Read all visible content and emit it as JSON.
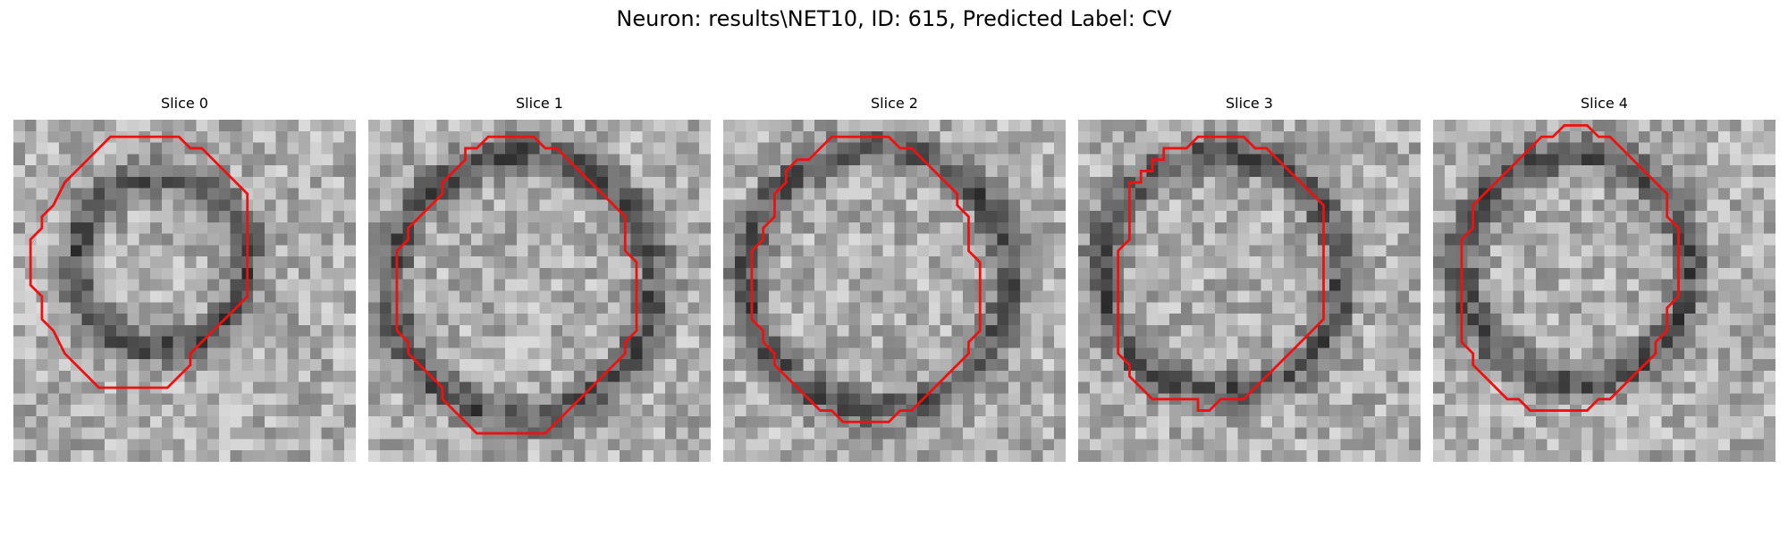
{
  "figure": {
    "title": "Neuron: results\\NET10, ID: 615, Predicted Label: CV",
    "contour_color": "#ee1111"
  },
  "panels": [
    {
      "title": "Slice 0",
      "contour": [
        [
          5.5,
          4.5
        ],
        [
          6.5,
          3.5
        ],
        [
          6.9,
          3.1
        ],
        [
          7.5,
          2.5
        ],
        [
          8.5,
          1.5
        ],
        [
          9.5,
          1.5
        ],
        [
          10.5,
          1.5
        ],
        [
          11.5,
          1.5
        ],
        [
          13.5,
          1.5
        ],
        [
          14.5,
          1.5
        ],
        [
          15.5,
          2.5
        ],
        [
          16.5,
          2.5
        ],
        [
          17.5,
          3.5
        ],
        [
          18.5,
          4.5
        ],
        [
          19.5,
          5.5
        ],
        [
          20.5,
          6.5
        ],
        [
          20.5,
          10.5
        ],
        [
          20.5,
          15.5
        ],
        [
          19.5,
          16.5
        ],
        [
          18.5,
          17.5
        ],
        [
          17.5,
          18.5
        ],
        [
          15.5,
          20.5
        ],
        [
          15.5,
          21.5
        ],
        [
          14.5,
          22.5
        ],
        [
          13.5,
          23.5
        ],
        [
          12.5,
          23.5
        ],
        [
          10.5,
          23.5
        ],
        [
          9.5,
          23.5
        ],
        [
          8.5,
          23.5
        ],
        [
          7.5,
          23.5
        ],
        [
          6.5,
          22.5
        ],
        [
          5.5,
          21.5
        ],
        [
          4.5,
          20.5
        ],
        [
          3.5,
          18.5
        ],
        [
          2.5,
          17.5
        ],
        [
          2.5,
          15.5
        ],
        [
          1.5,
          14.5
        ],
        [
          1.5,
          12.5
        ],
        [
          1.5,
          10.5
        ],
        [
          2.5,
          9.5
        ],
        [
          2.5,
          8.5
        ],
        [
          3.5,
          7.5
        ],
        [
          4.5,
          5.5
        ]
      ]
    },
    {
      "title": "Slice 1",
      "contour": [
        [
          8.5,
          2.5
        ],
        [
          9.5,
          2.5
        ],
        [
          10.5,
          1.5
        ],
        [
          11.5,
          1.5
        ],
        [
          13.5,
          1.5
        ],
        [
          14.5,
          1.5
        ],
        [
          15.5,
          2.5
        ],
        [
          16.5,
          2.5
        ],
        [
          17.5,
          3.5
        ],
        [
          18.5,
          4.5
        ],
        [
          19.5,
          5.5
        ],
        [
          20.5,
          6.5
        ],
        [
          21.5,
          7.5
        ],
        [
          22.5,
          8.5
        ],
        [
          22.5,
          9.5
        ],
        [
          22.5,
          11.5
        ],
        [
          23.5,
          12.5
        ],
        [
          23.5,
          14.5
        ],
        [
          23.5,
          16.5
        ],
        [
          23.5,
          18.5
        ],
        [
          22.5,
          19.5
        ],
        [
          22.5,
          20.5
        ],
        [
          21.5,
          21.5
        ],
        [
          20.5,
          22.5
        ],
        [
          19.5,
          23.5
        ],
        [
          18.5,
          24.5
        ],
        [
          17.5,
          25.5
        ],
        [
          16.5,
          26.5
        ],
        [
          15.5,
          27.5
        ],
        [
          14.5,
          27.5
        ],
        [
          12.5,
          27.5
        ],
        [
          11.5,
          27.5
        ],
        [
          10.5,
          27.5
        ],
        [
          9.5,
          27.5
        ],
        [
          8.5,
          26.5
        ],
        [
          7.5,
          25.5
        ],
        [
          6.5,
          24.5
        ],
        [
          6.5,
          23.5
        ],
        [
          5.5,
          22.5
        ],
        [
          4.5,
          21.5
        ],
        [
          3.5,
          20.5
        ],
        [
          3.5,
          19.5
        ],
        [
          2.5,
          18.5
        ],
        [
          2.5,
          17.5
        ],
        [
          2.5,
          15.5
        ],
        [
          2.5,
          13.5
        ],
        [
          2.5,
          11.5
        ],
        [
          3.5,
          10.5
        ],
        [
          3.5,
          9.5
        ],
        [
          4.5,
          8.5
        ],
        [
          5.5,
          7.5
        ],
        [
          6.5,
          6.5
        ],
        [
          6.5,
          5.5
        ],
        [
          7.5,
          4.5
        ],
        [
          8.5,
          3.5
        ]
      ]
    },
    {
      "title": "Slice 2",
      "contour": [
        [
          8.5,
          2.5
        ],
        [
          9.5,
          1.5
        ],
        [
          10.5,
          1.5
        ],
        [
          11.5,
          1.5
        ],
        [
          13.5,
          1.5
        ],
        [
          14.5,
          1.5
        ],
        [
          15.5,
          2.5
        ],
        [
          16.5,
          2.5
        ],
        [
          17.5,
          3.5
        ],
        [
          18.5,
          4.5
        ],
        [
          19.5,
          5.5
        ],
        [
          20.5,
          6.5
        ],
        [
          20.5,
          7.5
        ],
        [
          21.5,
          8.5
        ],
        [
          21.5,
          9.5
        ],
        [
          21.5,
          11.5
        ],
        [
          22.5,
          12.5
        ],
        [
          22.5,
          14.5
        ],
        [
          22.5,
          16.5
        ],
        [
          22.5,
          18.5
        ],
        [
          21.5,
          19.5
        ],
        [
          21.5,
          20.5
        ],
        [
          20.5,
          21.5
        ],
        [
          19.5,
          22.5
        ],
        [
          18.5,
          23.5
        ],
        [
          17.5,
          24.5
        ],
        [
          16.5,
          25.5
        ],
        [
          15.5,
          25.5
        ],
        [
          14.5,
          26.5
        ],
        [
          12.5,
          26.5
        ],
        [
          11.5,
          26.5
        ],
        [
          10.5,
          26.5
        ],
        [
          9.5,
          25.5
        ],
        [
          8.5,
          25.5
        ],
        [
          7.5,
          24.5
        ],
        [
          6.5,
          23.5
        ],
        [
          5.5,
          22.5
        ],
        [
          4.5,
          21.5
        ],
        [
          4.5,
          20.5
        ],
        [
          3.5,
          19.5
        ],
        [
          3.5,
          18.5
        ],
        [
          2.5,
          17.5
        ],
        [
          2.5,
          15.5
        ],
        [
          2.5,
          13.5
        ],
        [
          2.5,
          11.5
        ],
        [
          3.5,
          10.5
        ],
        [
          3.5,
          9.5
        ],
        [
          4.5,
          8.5
        ],
        [
          4.5,
          6.5
        ],
        [
          5.5,
          5.5
        ],
        [
          5.5,
          4.5
        ],
        [
          6.5,
          3.5
        ],
        [
          7.5,
          3.5
        ]
      ]
    },
    {
      "title": "Slice 3",
      "contour": [
        [
          8.5,
          2.5
        ],
        [
          9.5,
          2.5
        ],
        [
          10.5,
          1.5
        ],
        [
          11.5,
          1.5
        ],
        [
          13.5,
          1.5
        ],
        [
          14.5,
          1.5
        ],
        [
          15.5,
          2.5
        ],
        [
          16.5,
          2.5
        ],
        [
          17.5,
          3.5
        ],
        [
          18.5,
          4.5
        ],
        [
          19.5,
          5.5
        ],
        [
          20.5,
          6.5
        ],
        [
          21.5,
          7.5
        ],
        [
          21.5,
          9.5
        ],
        [
          21.5,
          11.5
        ],
        [
          21.5,
          13.5
        ],
        [
          21.5,
          15.5
        ],
        [
          21.5,
          17.5
        ],
        [
          20.5,
          18.5
        ],
        [
          19.5,
          19.5
        ],
        [
          18.5,
          20.5
        ],
        [
          17.5,
          21.5
        ],
        [
          16.5,
          22.5
        ],
        [
          15.5,
          23.5
        ],
        [
          14.5,
          24.5
        ],
        [
          13.5,
          24.5
        ],
        [
          12.5,
          24.5
        ],
        [
          11.5,
          25.5
        ],
        [
          10.5,
          25.5
        ],
        [
          10.5,
          24.5
        ],
        [
          9.5,
          24.5
        ],
        [
          8.5,
          24.5
        ],
        [
          7.5,
          24.5
        ],
        [
          6.5,
          24.5
        ],
        [
          5.5,
          23.5
        ],
        [
          4.5,
          22.5
        ],
        [
          4.5,
          21.5
        ],
        [
          3.5,
          20.5
        ],
        [
          3.5,
          19.5
        ],
        [
          3.5,
          18.5
        ],
        [
          3.5,
          16.5
        ],
        [
          3.5,
          14.5
        ],
        [
          3.5,
          12.5
        ],
        [
          3.5,
          11.5
        ],
        [
          4.5,
          10.5
        ],
        [
          4.5,
          9.5
        ],
        [
          4.5,
          7.5
        ],
        [
          4.5,
          5.5
        ],
        [
          5.5,
          5.5
        ],
        [
          5.5,
          4.5
        ],
        [
          6.5,
          4.5
        ],
        [
          6.5,
          3.5
        ],
        [
          7.5,
          3.5
        ],
        [
          7.5,
          2.5
        ]
      ]
    },
    {
      "title": "Slice 4",
      "contour": [
        [
          9.5,
          1.5
        ],
        [
          10.5,
          1.5
        ],
        [
          11.5,
          0.5
        ],
        [
          12.5,
          0.5
        ],
        [
          13.5,
          0.5
        ],
        [
          14.5,
          1.5
        ],
        [
          15.5,
          1.5
        ],
        [
          16.5,
          2.5
        ],
        [
          17.5,
          3.5
        ],
        [
          18.5,
          4.5
        ],
        [
          19.5,
          5.5
        ],
        [
          20.5,
          6.5
        ],
        [
          20.5,
          8.5
        ],
        [
          21.5,
          9.5
        ],
        [
          21.5,
          11.5
        ],
        [
          21.5,
          13.5
        ],
        [
          21.5,
          15.5
        ],
        [
          20.5,
          16.5
        ],
        [
          20.5,
          18.5
        ],
        [
          19.5,
          19.5
        ],
        [
          19.5,
          20.5
        ],
        [
          18.5,
          21.5
        ],
        [
          17.5,
          22.5
        ],
        [
          16.5,
          23.5
        ],
        [
          15.5,
          24.5
        ],
        [
          14.5,
          24.5
        ],
        [
          13.5,
          25.5
        ],
        [
          12.5,
          25.5
        ],
        [
          11.5,
          25.5
        ],
        [
          10.5,
          25.5
        ],
        [
          9.5,
          25.5
        ],
        [
          8.5,
          25.5
        ],
        [
          7.5,
          24.5
        ],
        [
          6.5,
          24.5
        ],
        [
          5.5,
          23.5
        ],
        [
          4.5,
          22.5
        ],
        [
          3.5,
          21.5
        ],
        [
          3.5,
          20.5
        ],
        [
          2.5,
          19.5
        ],
        [
          2.5,
          18.5
        ],
        [
          2.5,
          16.5
        ],
        [
          2.5,
          14.5
        ],
        [
          2.5,
          12.5
        ],
        [
          2.5,
          10.5
        ],
        [
          3.5,
          9.5
        ],
        [
          3.5,
          8.5
        ],
        [
          3.5,
          7.5
        ],
        [
          4.5,
          6.5
        ],
        [
          5.5,
          5.5
        ],
        [
          6.5,
          4.5
        ],
        [
          7.5,
          3.5
        ],
        [
          8.5,
          2.5
        ]
      ]
    }
  ]
}
